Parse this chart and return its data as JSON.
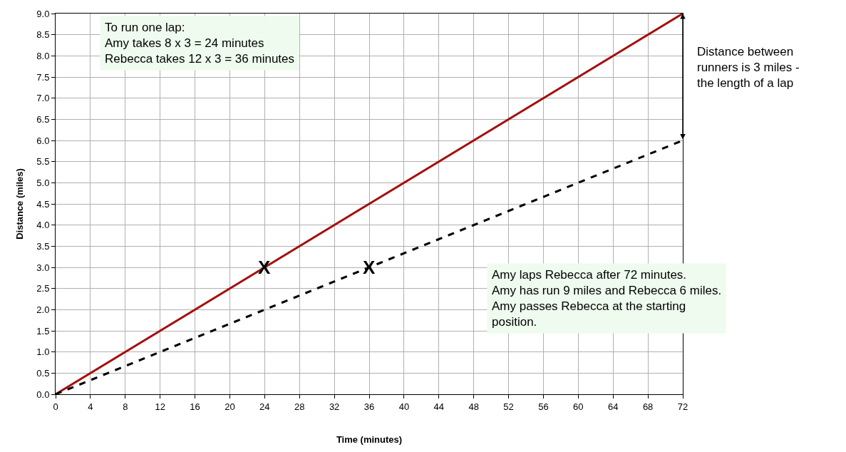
{
  "chart_data": {
    "type": "line",
    "xlabel": "Time (minutes)",
    "ylabel": "Distance (miles)",
    "x": [
      0,
      72
    ],
    "series": [
      {
        "color": "#a50f0f",
        "values": [
          0,
          9
        ],
        "line_style": "solid"
      },
      {
        "color": "#000000",
        "values": [
          0,
          6
        ],
        "line_style": "dashed"
      }
    ],
    "xlim": [
      0,
      72
    ],
    "xticks": [
      0,
      4,
      8,
      12,
      16,
      20,
      24,
      28,
      32,
      36,
      40,
      44,
      48,
      52,
      56,
      60,
      64,
      68,
      72
    ],
    "ylim": [
      0,
      9
    ],
    "yticks": [
      {
        "value": 0,
        "label": "0.0"
      },
      {
        "value": 0.5,
        "label": "0.5"
      },
      {
        "value": 1,
        "label": "1.0"
      },
      {
        "value": 1.5,
        "label": "1.5"
      },
      {
        "value": 2,
        "label": "2.0"
      },
      {
        "value": 2.5,
        "label": "2.5"
      },
      {
        "value": 3,
        "label": "3.0"
      },
      {
        "value": 3.5,
        "label": "3.5"
      },
      {
        "value": 4,
        "label": "4.0"
      },
      {
        "value": 4.5,
        "label": "4.5"
      },
      {
        "value": 5,
        "label": "5.0"
      },
      {
        "value": 5.5,
        "label": "5.5"
      },
      {
        "value": 6,
        "label": "6.0"
      },
      {
        "value": 6.5,
        "label": "6.5"
      },
      {
        "value": 7,
        "label": "7.0"
      },
      {
        "value": 7.5,
        "label": "7.5"
      },
      {
        "value": 8,
        "label": "8.0"
      },
      {
        "value": 8.5,
        "label": "8.5"
      },
      {
        "value": 9,
        "label": "9.0"
      }
    ],
    "grid": true,
    "legend": false,
    "marker": "none",
    "annotations": [
      "To run one lap:\nAmy takes 8 x 3 = 24 minutes\nRebecca takes 12 x 3 = 36 minutes",
      "Amy laps Rebecca after 72 minutes.\nAmy has run 9 miles and Rebecca 6 miles.\nAmy passes Rebecca at the starting\nposition.",
      "Distance between\nrunners is 3 miles -\nthe length of a lap",
      {
        "text": "X",
        "x": 24,
        "y": 3
      },
      {
        "text": "X",
        "x": 36,
        "y": 3
      }
    ]
  }
}
